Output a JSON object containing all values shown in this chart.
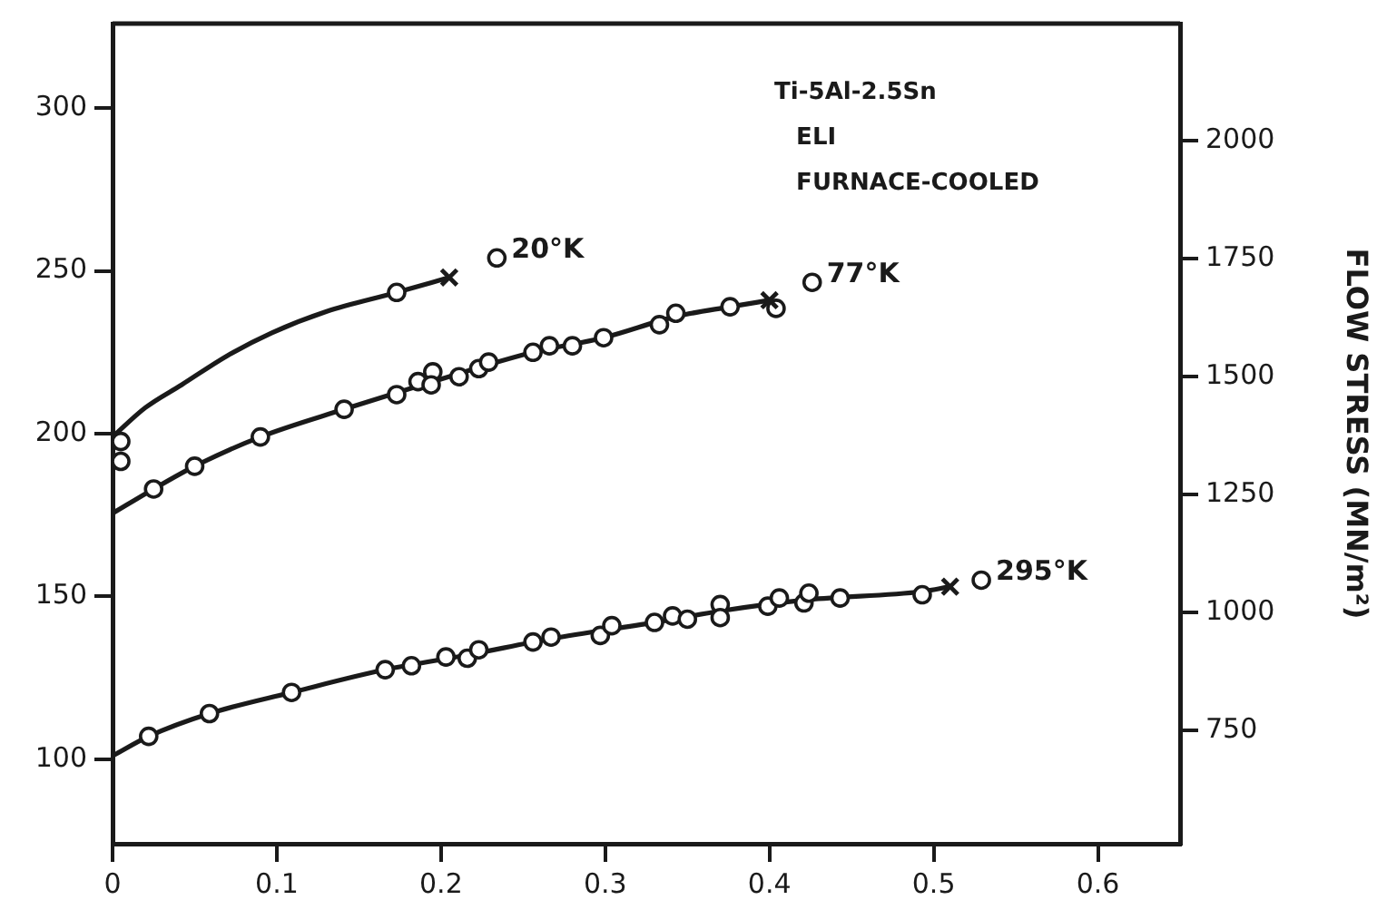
{
  "chart_data": {
    "type": "scatter",
    "y2label": "FLOW STRESS (MN/m²)",
    "annotations": [
      "Ti-5Al-2.5Sn",
      "ELI",
      "FURNACE-COOLED"
    ],
    "xlim": [
      0,
      0.65
    ],
    "xticks": [
      0,
      0.1,
      0.2,
      0.3,
      0.4,
      0.5,
      0.6
    ],
    "ylim": [
      74,
      326
    ],
    "yticks": [
      100,
      150,
      200,
      250,
      300
    ],
    "y2lim": [
      510,
      2248
    ],
    "y2ticks": [
      750,
      1000,
      1250,
      1500,
      1750,
      2000
    ],
    "grid": false,
    "legend": false,
    "line_style": "solid",
    "series": [
      {
        "type": "line",
        "marker": "none",
        "color": "#1a1a1a",
        "x": [
          0,
          0.02,
          0.042,
          0.07,
          0.097,
          0.13,
          0.173,
          0.205
        ],
        "values": [
          199,
          208,
          215,
          224,
          231,
          237.5,
          243.4,
          248
        ]
      },
      {
        "type": "line",
        "marker": "none",
        "color": "#1a1a1a",
        "x": [
          0,
          0.025,
          0.05,
          0.09,
          0.141,
          0.195,
          0.256,
          0.299,
          0.343,
          0.376,
          0.4
        ],
        "values": [
          175.5,
          183,
          190,
          199,
          207.5,
          216,
          225,
          229.5,
          236,
          239,
          241
        ]
      },
      {
        "type": "line",
        "marker": "none",
        "color": "#1a1a1a",
        "x": [
          0,
          0.022,
          0.059,
          0.109,
          0.166,
          0.216,
          0.267,
          0.33,
          0.37,
          0.424,
          0.493,
          0.51
        ],
        "values": [
          101,
          107,
          114,
          120.5,
          127.5,
          132,
          137,
          142,
          145.5,
          149,
          151.5,
          153
        ]
      },
      {
        "type": "scatter",
        "marker": "circle",
        "name": "20°K",
        "color": "#1a1a1a",
        "x": [
          0.005,
          0.005,
          0.173,
          0.234
        ],
        "values": [
          197.6,
          191.5,
          243.4,
          254
        ]
      },
      {
        "type": "scatter",
        "marker": "circle",
        "name": "77°K",
        "color": "#1a1a1a",
        "x": [
          0.025,
          0.05,
          0.09,
          0.141,
          0.173,
          0.186,
          0.195,
          0.194,
          0.211,
          0.223,
          0.229,
          0.256,
          0.266,
          0.28,
          0.299,
          0.333,
          0.343,
          0.376,
          0.404,
          0.426
        ],
        "values": [
          183,
          190,
          199,
          207.5,
          212,
          216,
          219,
          215,
          217.5,
          220,
          222,
          225,
          227,
          227,
          229.5,
          233.5,
          237,
          239,
          238.5,
          246.5
        ]
      },
      {
        "type": "scatter",
        "marker": "circle",
        "name": "295°K",
        "color": "#1a1a1a",
        "x": [
          0.022,
          0.059,
          0.109,
          0.166,
          0.182,
          0.203,
          0.216,
          0.223,
          0.256,
          0.267,
          0.297,
          0.304,
          0.33,
          0.341,
          0.35,
          0.37,
          0.37,
          0.399,
          0.406,
          0.421,
          0.424,
          0.443,
          0.493,
          0.529
        ],
        "values": [
          107,
          114,
          120.5,
          127.5,
          128.7,
          131.4,
          131,
          133.6,
          136,
          137.5,
          138,
          141,
          142,
          144,
          143,
          147.5,
          143.5,
          147,
          149.5,
          148,
          151,
          149.5,
          150.5,
          155
        ]
      },
      {
        "type": "scatter",
        "marker": "cross",
        "color": "#1a1a1a",
        "x": [
          0.205,
          0.4,
          0.51
        ],
        "values": [
          248,
          241,
          153
        ]
      }
    ]
  }
}
